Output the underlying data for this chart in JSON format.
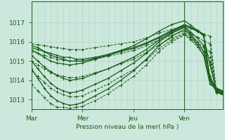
{
  "background_color": "#cce8dc",
  "plot_bg_color": "#cce8dc",
  "grid_color": "#b0d4c4",
  "line_color": "#1a5c1a",
  "xlabel": "Pression niveau de la mer( hPa )",
  "xlim": [
    0,
    90
  ],
  "ylim": [
    1012.5,
    1018.1
  ],
  "yticks": [
    1013,
    1014,
    1015,
    1016,
    1017
  ],
  "ytick_labels": [
    "1013",
    "1014",
    "1015",
    "1016",
    "1017"
  ],
  "xtick_positions": [
    0,
    24,
    48,
    72
  ],
  "xtick_labels": [
    "Mar",
    "Mer",
    "Jeu",
    "Ven"
  ],
  "series": [
    {
      "x": [
        0,
        3,
        6,
        9,
        12,
        15,
        18,
        21,
        24,
        30,
        36,
        42,
        48,
        54,
        60,
        66,
        72,
        75,
        78,
        81,
        84,
        87,
        90
      ],
      "y": [
        1015.8,
        1015.7,
        1015.5,
        1015.3,
        1015.2,
        1015.1,
        1015.0,
        1015.0,
        1015.0,
        1015.15,
        1015.3,
        1015.5,
        1015.65,
        1015.9,
        1016.2,
        1016.55,
        1016.85,
        1016.7,
        1016.55,
        1016.35,
        1014.0,
        1013.4,
        1013.25
      ],
      "dashed": false,
      "lw": 0.9
    },
    {
      "x": [
        0,
        3,
        6,
        9,
        12,
        15,
        18,
        21,
        24,
        30,
        36,
        42,
        48,
        54,
        60,
        66,
        72,
        75,
        78,
        81,
        84,
        87,
        90
      ],
      "y": [
        1015.7,
        1015.6,
        1015.5,
        1015.4,
        1015.3,
        1015.2,
        1015.2,
        1015.1,
        1015.1,
        1015.2,
        1015.35,
        1015.55,
        1015.7,
        1015.95,
        1016.25,
        1016.6,
        1016.9,
        1016.75,
        1016.6,
        1016.4,
        1014.1,
        1013.45,
        1013.3
      ],
      "dashed": false,
      "lw": 0.9
    },
    {
      "x": [
        0,
        3,
        6,
        9,
        12,
        15,
        18,
        21,
        24,
        30,
        36,
        42,
        48,
        54,
        60,
        66,
        72,
        75,
        78,
        81,
        84,
        87,
        90
      ],
      "y": [
        1015.6,
        1015.4,
        1015.2,
        1015.0,
        1014.9,
        1014.85,
        1014.8,
        1014.85,
        1014.9,
        1015.1,
        1015.3,
        1015.55,
        1015.8,
        1016.15,
        1016.55,
        1016.9,
        1017.1,
        1016.85,
        1016.6,
        1016.3,
        1014.8,
        1013.5,
        1013.35
      ],
      "dashed": false,
      "lw": 0.9
    },
    {
      "x": [
        0,
        3,
        6,
        9,
        12,
        15,
        18,
        21,
        24,
        30,
        36,
        42,
        48,
        54,
        60,
        66,
        72,
        75,
        78,
        81,
        84,
        87,
        90
      ],
      "y": [
        1015.3,
        1015.0,
        1014.7,
        1014.45,
        1014.25,
        1014.1,
        1014.0,
        1014.05,
        1014.1,
        1014.35,
        1014.6,
        1014.9,
        1015.2,
        1015.6,
        1016.1,
        1016.5,
        1016.8,
        1016.5,
        1016.2,
        1015.8,
        1014.2,
        1013.55,
        1013.4
      ],
      "dashed": false,
      "lw": 0.9
    },
    {
      "x": [
        0,
        3,
        6,
        9,
        12,
        15,
        18,
        21,
        24,
        30,
        36,
        42,
        48,
        54,
        60,
        66,
        72,
        75,
        78,
        81,
        84,
        87,
        90
      ],
      "y": [
        1015.0,
        1014.6,
        1014.2,
        1013.85,
        1013.6,
        1013.45,
        1013.35,
        1013.4,
        1013.5,
        1013.8,
        1014.1,
        1014.5,
        1014.9,
        1015.4,
        1016.0,
        1016.45,
        1016.75,
        1016.4,
        1016.0,
        1015.5,
        1014.0,
        1013.6,
        1013.45
      ],
      "dashed": false,
      "lw": 0.9
    },
    {
      "x": [
        0,
        3,
        6,
        9,
        12,
        15,
        18,
        21,
        24,
        30,
        36,
        42,
        48,
        54,
        60,
        66,
        72,
        75,
        78,
        81,
        84,
        87,
        90
      ],
      "y": [
        1014.6,
        1014.1,
        1013.6,
        1013.2,
        1012.95,
        1012.8,
        1012.7,
        1012.75,
        1012.85,
        1013.2,
        1013.55,
        1014.0,
        1014.5,
        1015.1,
        1015.8,
        1016.3,
        1016.65,
        1016.3,
        1015.85,
        1015.3,
        1013.8,
        1013.55,
        1013.45
      ],
      "dashed": false,
      "lw": 0.9
    },
    {
      "x": [
        0,
        3,
        6,
        9,
        12,
        15,
        18,
        21,
        24,
        30,
        36,
        42,
        48,
        54,
        60,
        66,
        72,
        75,
        78,
        81,
        84,
        87,
        90
      ],
      "y": [
        1015.9,
        1015.85,
        1015.8,
        1015.75,
        1015.7,
        1015.65,
        1015.6,
        1015.6,
        1015.6,
        1015.7,
        1015.8,
        1015.9,
        1016.0,
        1016.2,
        1016.45,
        1016.65,
        1016.8,
        1016.7,
        1016.55,
        1016.4,
        1016.3,
        1013.45,
        1013.3
      ],
      "dashed": true,
      "lw": 0.7
    },
    {
      "x": [
        0,
        3,
        6,
        9,
        12,
        15,
        18,
        21,
        24,
        30,
        36,
        42,
        48,
        54,
        60,
        66,
        72,
        75,
        78,
        81,
        84,
        87,
        90
      ],
      "y": [
        1015.5,
        1015.4,
        1015.3,
        1015.2,
        1015.1,
        1015.05,
        1015.0,
        1015.0,
        1015.0,
        1015.1,
        1015.25,
        1015.4,
        1015.55,
        1015.8,
        1016.1,
        1016.35,
        1016.55,
        1016.4,
        1016.25,
        1016.05,
        1015.9,
        1013.4,
        1013.28
      ],
      "dashed": true,
      "lw": 0.7
    },
    {
      "x": [
        0,
        3,
        6,
        9,
        12,
        15,
        18,
        21,
        24,
        30,
        36,
        42,
        48,
        54,
        60,
        66,
        72,
        75,
        78,
        81,
        84,
        87,
        90
      ],
      "y": [
        1015.0,
        1014.8,
        1014.6,
        1014.4,
        1014.3,
        1014.2,
        1014.15,
        1014.15,
        1014.2,
        1014.4,
        1014.6,
        1014.85,
        1015.1,
        1015.45,
        1015.85,
        1016.2,
        1016.45,
        1016.25,
        1016.0,
        1015.7,
        1015.5,
        1013.35,
        1013.25
      ],
      "dashed": true,
      "lw": 0.7
    },
    {
      "x": [
        0,
        3,
        6,
        9,
        12,
        15,
        18,
        21,
        24,
        30,
        36,
        42,
        48,
        54,
        60,
        66,
        72,
        75,
        78,
        81,
        84,
        87,
        90
      ],
      "y": [
        1014.5,
        1014.2,
        1013.9,
        1013.6,
        1013.4,
        1013.25,
        1013.15,
        1013.15,
        1013.2,
        1013.5,
        1013.8,
        1014.2,
        1014.55,
        1015.05,
        1015.65,
        1016.1,
        1016.4,
        1016.15,
        1015.85,
        1015.5,
        1015.2,
        1013.4,
        1013.3
      ],
      "dashed": true,
      "lw": 0.7
    },
    {
      "x": [
        0,
        3,
        6,
        9,
        12,
        15,
        18,
        21,
        24,
        30,
        36,
        42,
        48,
        54,
        60,
        66,
        72,
        75,
        78,
        81,
        84,
        87,
        90
      ],
      "y": [
        1013.8,
        1013.45,
        1013.1,
        1012.8,
        1012.6,
        1012.6,
        1012.55,
        1012.6,
        1012.65,
        1012.95,
        1013.3,
        1013.75,
        1014.2,
        1014.8,
        1015.5,
        1016.0,
        1016.35,
        1016.1,
        1015.75,
        1015.3,
        1014.95,
        1013.45,
        1013.35
      ],
      "dashed": true,
      "lw": 0.7
    }
  ],
  "vline_x": 72,
  "vline_color": "#2a6b2a"
}
